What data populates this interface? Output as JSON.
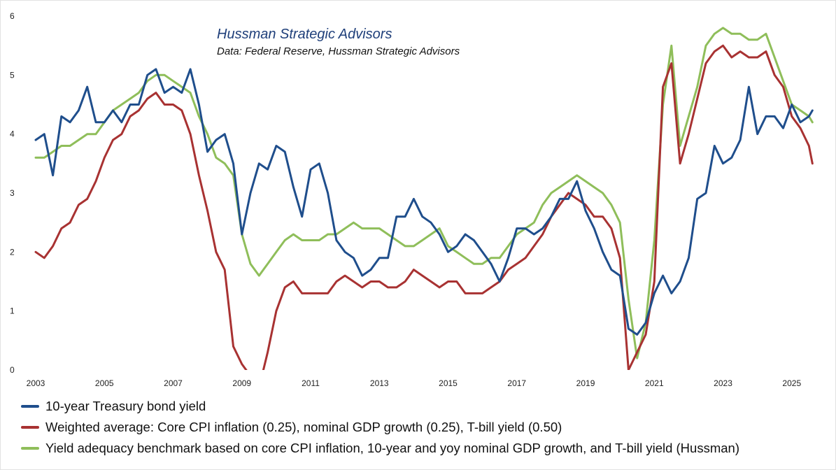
{
  "colors": {
    "treasury": "#1f4e8c",
    "weighted": "#a83232",
    "benchmark": "#8fbe5a",
    "title": "#1f3f7a"
  },
  "chart_data": {
    "type": "line",
    "title": "Hussman Strategic Advisors",
    "subtitle": "Data: Federal Reserve, Hussman Strategic Advisors",
    "xlim": [
      2003,
      2025.9
    ],
    "ylim": [
      0,
      6
    ],
    "grid": false,
    "legend_position": "bottom",
    "x_ticks": [
      "2003",
      "2005",
      "2007",
      "2009",
      "2011",
      "2013",
      "2015",
      "2017",
      "2019",
      "2021",
      "2023",
      "2025"
    ],
    "y_ticks": [
      "0",
      "1",
      "2",
      "3",
      "4",
      "5",
      "6"
    ],
    "series": [
      {
        "name": "10-year Treasury bond yield",
        "color": "treasury",
        "x": [
          2003,
          2003.25,
          2003.5,
          2003.75,
          2004,
          2004.25,
          2004.5,
          2004.75,
          2005,
          2005.25,
          2005.5,
          2005.75,
          2006,
          2006.25,
          2006.5,
          2006.75,
          2007,
          2007.25,
          2007.5,
          2007.75,
          2008,
          2008.25,
          2008.5,
          2008.75,
          2009,
          2009.25,
          2009.5,
          2009.75,
          2010,
          2010.25,
          2010.5,
          2010.75,
          2011,
          2011.25,
          2011.5,
          2011.75,
          2012,
          2012.25,
          2012.5,
          2012.75,
          2013,
          2013.25,
          2013.5,
          2013.75,
          2014,
          2014.25,
          2014.5,
          2014.75,
          2015,
          2015.25,
          2015.5,
          2015.75,
          2016,
          2016.25,
          2016.5,
          2016.75,
          2017,
          2017.25,
          2017.5,
          2017.75,
          2018,
          2018.25,
          2018.5,
          2018.75,
          2019,
          2019.25,
          2019.5,
          2019.75,
          2020,
          2020.25,
          2020.5,
          2020.75,
          2021,
          2021.25,
          2021.5,
          2021.75,
          2022,
          2022.25,
          2022.5,
          2022.75,
          2023,
          2023.25,
          2023.5,
          2023.75,
          2024,
          2024.25,
          2024.5,
          2024.75,
          2025,
          2025.25,
          2025.5,
          2025.6
        ],
        "y": [
          3.9,
          4.0,
          3.3,
          4.3,
          4.2,
          4.4,
          4.8,
          4.2,
          4.2,
          4.4,
          4.2,
          4.5,
          4.5,
          5.0,
          5.1,
          4.7,
          4.8,
          4.7,
          5.1,
          4.5,
          3.7,
          3.9,
          4.0,
          3.5,
          2.3,
          3.0,
          3.5,
          3.4,
          3.8,
          3.7,
          3.1,
          2.6,
          3.4,
          3.5,
          3.0,
          2.2,
          2.0,
          1.9,
          1.6,
          1.7,
          1.9,
          1.9,
          2.6,
          2.6,
          2.9,
          2.6,
          2.5,
          2.3,
          2.0,
          2.1,
          2.3,
          2.2,
          2.0,
          1.8,
          1.5,
          1.9,
          2.4,
          2.4,
          2.3,
          2.4,
          2.6,
          2.9,
          2.9,
          3.2,
          2.7,
          2.4,
          2.0,
          1.7,
          1.6,
          0.7,
          0.6,
          0.8,
          1.3,
          1.6,
          1.3,
          1.5,
          1.9,
          2.9,
          3.0,
          3.8,
          3.5,
          3.6,
          3.9,
          4.8,
          4.0,
          4.3,
          4.3,
          4.1,
          4.5,
          4.2,
          4.3,
          4.4
        ]
      },
      {
        "name": "Weighted average: Core CPI inflation (0.25), nominal GDP growth (0.25), T-bill yield (0.50)",
        "color": "weighted",
        "x": [
          2003,
          2003.25,
          2003.5,
          2003.75,
          2004,
          2004.25,
          2004.5,
          2004.75,
          2005,
          2005.25,
          2005.5,
          2005.75,
          2006,
          2006.25,
          2006.5,
          2006.75,
          2007,
          2007.25,
          2007.5,
          2007.75,
          2008,
          2008.25,
          2008.5,
          2008.75,
          2009,
          2009.25,
          2009.5,
          2009.75,
          2010,
          2010.25,
          2010.5,
          2010.75,
          2011,
          2011.25,
          2011.5,
          2011.75,
          2012,
          2012.25,
          2012.5,
          2012.75,
          2013,
          2013.25,
          2013.5,
          2013.75,
          2014,
          2014.25,
          2014.5,
          2014.75,
          2015,
          2015.25,
          2015.5,
          2015.75,
          2016,
          2016.25,
          2016.5,
          2016.75,
          2017,
          2017.25,
          2017.5,
          2017.75,
          2018,
          2018.25,
          2018.5,
          2018.75,
          2019,
          2019.25,
          2019.5,
          2019.75,
          2020,
          2020.25,
          2020.5,
          2020.75,
          2021,
          2021.25,
          2021.5,
          2021.75,
          2022,
          2022.25,
          2022.5,
          2022.75,
          2023,
          2023.25,
          2023.5,
          2023.75,
          2024,
          2024.25,
          2024.5,
          2024.75,
          2025,
          2025.25,
          2025.5,
          2025.6
        ],
        "y": [
          2.0,
          1.9,
          2.1,
          2.4,
          2.5,
          2.8,
          2.9,
          3.2,
          3.6,
          3.9,
          4.0,
          4.3,
          4.4,
          4.6,
          4.7,
          4.5,
          4.5,
          4.4,
          4.0,
          3.3,
          2.7,
          2.0,
          1.7,
          0.4,
          0.1,
          -0.1,
          -0.3,
          0.3,
          1.0,
          1.4,
          1.5,
          1.3,
          1.3,
          1.3,
          1.3,
          1.5,
          1.6,
          1.5,
          1.4,
          1.5,
          1.5,
          1.4,
          1.4,
          1.5,
          1.7,
          1.6,
          1.5,
          1.4,
          1.5,
          1.5,
          1.3,
          1.3,
          1.3,
          1.4,
          1.5,
          1.7,
          1.8,
          1.9,
          2.1,
          2.3,
          2.6,
          2.8,
          3.0,
          2.9,
          2.8,
          2.6,
          2.6,
          2.4,
          1.9,
          0.0,
          0.3,
          0.6,
          1.5,
          4.8,
          5.2,
          3.5,
          4.0,
          4.6,
          5.2,
          5.4,
          5.5,
          5.3,
          5.4,
          5.3,
          5.3,
          5.4,
          5.0,
          4.8,
          4.3,
          4.1,
          3.8,
          3.5
        ]
      },
      {
        "name": "Yield adequacy benchmark based on core CPI inflation, 10-year and yoy nominal GDP growth, and T-bill yield (Hussman)",
        "color": "benchmark",
        "x": [
          2003,
          2003.25,
          2003.5,
          2003.75,
          2004,
          2004.25,
          2004.5,
          2004.75,
          2005,
          2005.25,
          2005.5,
          2005.75,
          2006,
          2006.25,
          2006.5,
          2006.75,
          2007,
          2007.25,
          2007.5,
          2007.75,
          2008,
          2008.25,
          2008.5,
          2008.75,
          2009,
          2009.25,
          2009.5,
          2009.75,
          2010,
          2010.25,
          2010.5,
          2010.75,
          2011,
          2011.25,
          2011.5,
          2011.75,
          2012,
          2012.25,
          2012.5,
          2012.75,
          2013,
          2013.25,
          2013.5,
          2013.75,
          2014,
          2014.25,
          2014.5,
          2014.75,
          2015,
          2015.25,
          2015.5,
          2015.75,
          2016,
          2016.25,
          2016.5,
          2016.75,
          2017,
          2017.25,
          2017.5,
          2017.75,
          2018,
          2018.25,
          2018.5,
          2018.75,
          2019,
          2019.25,
          2019.5,
          2019.75,
          2020,
          2020.25,
          2020.5,
          2020.75,
          2021,
          2021.25,
          2021.5,
          2021.75,
          2022,
          2022.25,
          2022.5,
          2022.75,
          2023,
          2023.25,
          2023.5,
          2023.75,
          2024,
          2024.25,
          2024.5,
          2024.75,
          2025,
          2025.25,
          2025.5,
          2025.6
        ],
        "y": [
          3.6,
          3.6,
          3.7,
          3.8,
          3.8,
          3.9,
          4.0,
          4.0,
          4.2,
          4.4,
          4.5,
          4.6,
          4.7,
          4.9,
          5.0,
          5.0,
          4.9,
          4.8,
          4.7,
          4.3,
          4.0,
          3.6,
          3.5,
          3.3,
          2.3,
          1.8,
          1.6,
          1.8,
          2.0,
          2.2,
          2.3,
          2.2,
          2.2,
          2.2,
          2.3,
          2.3,
          2.4,
          2.5,
          2.4,
          2.4,
          2.4,
          2.3,
          2.2,
          2.1,
          2.1,
          2.2,
          2.3,
          2.4,
          2.1,
          2.0,
          1.9,
          1.8,
          1.8,
          1.9,
          1.9,
          2.1,
          2.3,
          2.4,
          2.5,
          2.8,
          3.0,
          3.1,
          3.2,
          3.3,
          3.2,
          3.1,
          3.0,
          2.8,
          2.5,
          1.2,
          0.2,
          0.8,
          2.2,
          4.5,
          5.5,
          3.8,
          4.3,
          4.8,
          5.5,
          5.7,
          5.8,
          5.7,
          5.7,
          5.6,
          5.6,
          5.7,
          5.3,
          4.9,
          4.5,
          4.4,
          4.3,
          4.2
        ]
      }
    ]
  }
}
